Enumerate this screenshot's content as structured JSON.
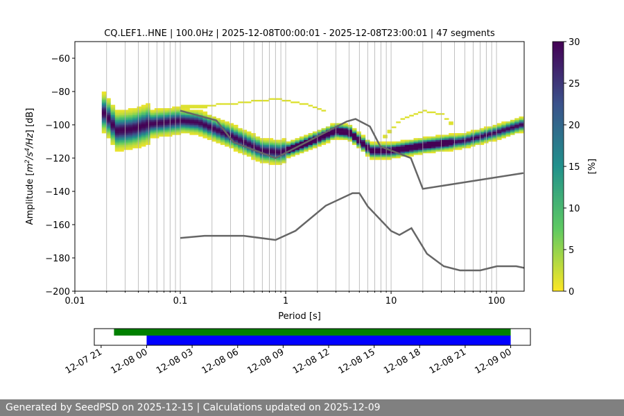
{
  "chart_data": [
    {
      "type": "heatmap",
      "title": "CQ.LEF1..HNE | 100.0Hz | 2025-12-08T00:00:01 - 2025-12-08T23:00:01 | 47 segments",
      "xlabel": "Period [s]",
      "ylabel": "Amplitude [m^2/s^4/Hz] [dB]",
      "xscale": "log",
      "xlim": [
        0.01,
        183
      ],
      "ylim": [
        -200,
        -50
      ],
      "xticks": [
        "0.01",
        "0.1",
        "1",
        "10",
        "100"
      ],
      "xtick_values": [
        0.01,
        0.1,
        1,
        10,
        100
      ],
      "yticks": [
        "−200",
        "−180",
        "−160",
        "−140",
        "−120",
        "−100",
        "−80",
        "−60"
      ],
      "ytick_values": [
        -200,
        -180,
        -160,
        -140,
        -120,
        -100,
        -80,
        -60
      ],
      "grid": "vertical at log minor/major ticks",
      "colormap": "viridis_r",
      "colorbar": {
        "label": "[%]",
        "range": [
          0,
          30
        ],
        "ticks": [
          "0",
          "5",
          "10",
          "15",
          "20",
          "25",
          "30"
        ],
        "tick_values": [
          0,
          5,
          10,
          15,
          20,
          25,
          30
        ]
      },
      "mode_curve": {
        "period": [
          0.018,
          0.02,
          0.025,
          0.035,
          0.05,
          0.1,
          0.15,
          0.3,
          0.6,
          0.9,
          1.5,
          3,
          4,
          5,
          6.5,
          10,
          20,
          50,
          100,
          180
        ],
        "db": [
          -92,
          -95,
          -104,
          -103,
          -100,
          -98,
          -99,
          -107,
          -116,
          -117,
          -112,
          -104,
          -105,
          -110,
          -116,
          -116,
          -113,
          -110,
          -105,
          -100
        ]
      },
      "secondary_curves": [
        {
          "period": [
            0.1,
            0.3,
            0.8,
            1.5,
            2.5
          ],
          "db": [
            -90,
            -88,
            -85,
            -88,
            -93
          ]
        },
        {
          "period": [
            8,
            12,
            20,
            30,
            40
          ],
          "db": [
            -110,
            -98,
            -92,
            -94,
            -102
          ]
        }
      ],
      "nhnm": {
        "period": [
          0.1,
          0.22,
          0.32,
          0.8,
          3.8,
          4.6,
          6.3,
          7.9,
          15.4,
          20,
          180
        ],
        "db": [
          -91.5,
          -97.4,
          -110.5,
          -120,
          -98,
          -96.5,
          -101,
          -113,
          -120,
          -138.5,
          -129
        ]
      },
      "nlnm": {
        "period": [
          0.1,
          0.17,
          0.4,
          0.8,
          1.24,
          2.4,
          4.3,
          5,
          6,
          10,
          12,
          15.6,
          21.9,
          31.6,
          45,
          70,
          101,
          154,
          183
        ],
        "db": [
          -168,
          -166.7,
          -166.7,
          -169.2,
          -163.7,
          -148.6,
          -141.1,
          -141.1,
          -149,
          -163.8,
          -166.2,
          -162.1,
          -177.5,
          -185,
          -187.5,
          -187.5,
          -185,
          -185,
          -186
        ]
      },
      "colors": {
        "model_lines": "#666666"
      }
    },
    {
      "type": "timeline",
      "xticks": [
        "12-07 21",
        "12-08 00",
        "12-08 03",
        "12-08 06",
        "12-08 09",
        "12-08 12",
        "12-08 15",
        "12-08 18",
        "12-08 21",
        "12-09 00"
      ],
      "xtick_hours": [
        -3,
        0,
        3,
        6,
        9,
        12,
        15,
        18,
        21,
        24
      ],
      "xlim_hours": [
        -3.45,
        25.3
      ],
      "series": [
        {
          "color": "#008000",
          "start_hour": -2.15,
          "end_hour": 24
        },
        {
          "color": "#0000ff",
          "start_hour": 0,
          "end_hour": 24
        }
      ]
    }
  ],
  "footer": {
    "text": "Generated by SeedPSD on 2025-12-15 | Calculations updated on 2025-12-09"
  }
}
